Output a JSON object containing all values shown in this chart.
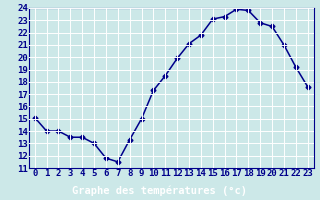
{
  "hours": [
    0,
    1,
    2,
    3,
    4,
    5,
    6,
    7,
    8,
    9,
    10,
    11,
    12,
    13,
    14,
    15,
    16,
    17,
    18,
    19,
    20,
    21,
    22,
    23
  ],
  "temps": [
    15.1,
    14.0,
    14.0,
    13.5,
    13.5,
    13.0,
    11.8,
    11.5,
    13.3,
    15.0,
    17.3,
    18.5,
    19.9,
    21.1,
    21.8,
    23.1,
    23.3,
    23.9,
    23.8,
    22.8,
    22.5,
    21.0,
    19.2,
    17.6
  ],
  "line_color": "#00008B",
  "marker": "D",
  "marker_size": 2.5,
  "bg_color": "#cce8e8",
  "grid_color": "#ffffff",
  "xlabel": "Graphe des températures (°c)",
  "xlabel_bg": "#4444aa",
  "xlabel_fg": "#ffffff",
  "ylim": [
    11,
    24
  ],
  "yticks": [
    11,
    12,
    13,
    14,
    15,
    16,
    17,
    18,
    19,
    20,
    21,
    22,
    23,
    24
  ],
  "xticks": [
    0,
    1,
    2,
    3,
    4,
    5,
    6,
    7,
    8,
    9,
    10,
    11,
    12,
    13,
    14,
    15,
    16,
    17,
    18,
    19,
    20,
    21,
    22,
    23
  ],
  "xlabel_fontsize": 7.5,
  "tick_fontsize": 6.5,
  "tick_color": "#00008B",
  "axis_color": "#00008B",
  "linewidth": 1.1
}
